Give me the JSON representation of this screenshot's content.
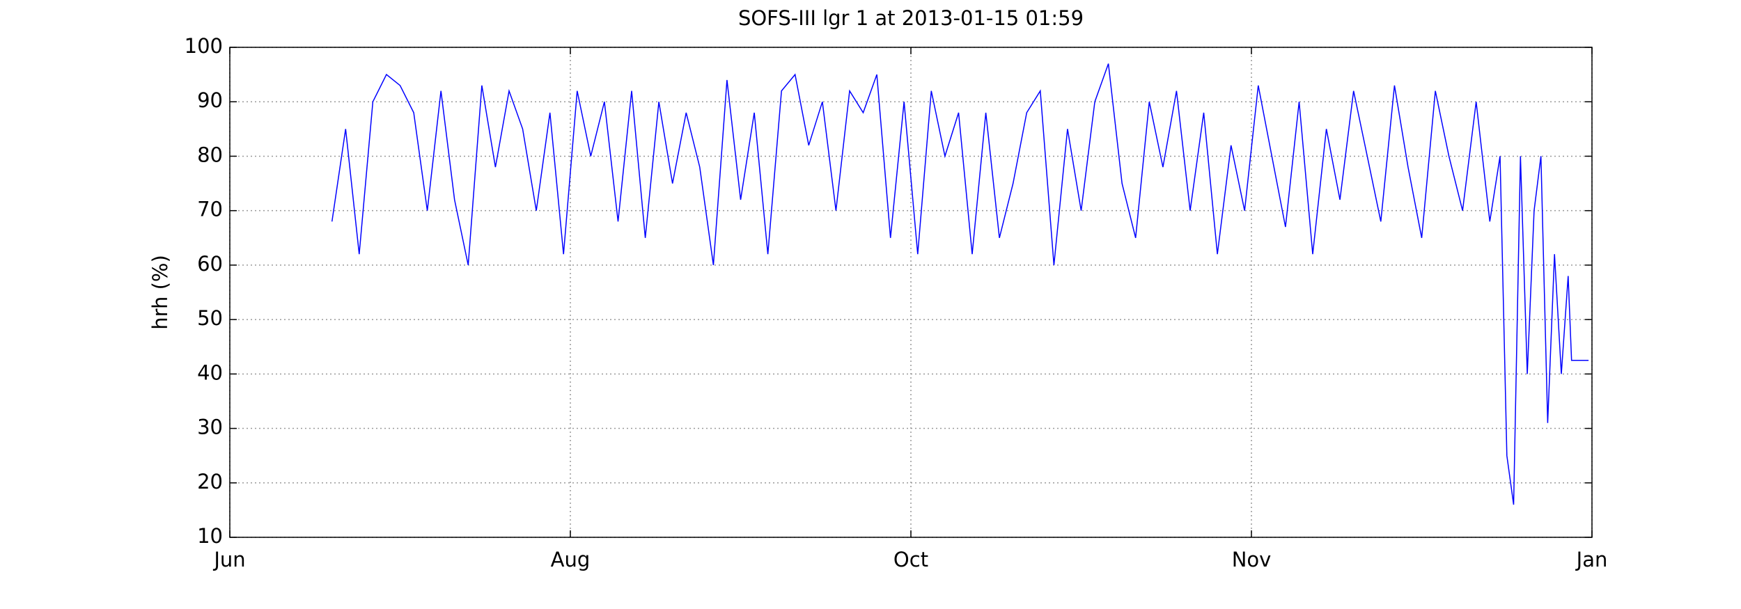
{
  "chart_data": {
    "type": "line",
    "title": "SOFS-III lgr 1 at 2013-01-15 01:59",
    "y_label": "hrh (%)",
    "xlim": [
      0,
      4
    ],
    "xticks": [
      {
        "value": 0,
        "label": "Jun"
      },
      {
        "value": 1,
        "label": "Aug"
      },
      {
        "value": 2,
        "label": "Oct"
      },
      {
        "value": 3,
        "label": "Nov"
      },
      {
        "value": 4,
        "label": "Jan"
      }
    ],
    "ylim": [
      10,
      100
    ],
    "yticks": [
      10,
      20,
      30,
      40,
      50,
      60,
      70,
      80,
      90,
      100
    ],
    "grid": true,
    "series": [
      {
        "name": "hrh",
        "color": "#0000ff",
        "x": [
          0.3,
          0.34,
          0.38,
          0.42,
          0.46,
          0.5,
          0.54,
          0.58,
          0.62,
          0.66,
          0.7,
          0.74,
          0.78,
          0.82,
          0.86,
          0.9,
          0.94,
          0.98,
          1.02,
          1.06,
          1.1,
          1.14,
          1.18,
          1.22,
          1.26,
          1.3,
          1.34,
          1.38,
          1.42,
          1.46,
          1.5,
          1.54,
          1.58,
          1.62,
          1.66,
          1.7,
          1.74,
          1.78,
          1.82,
          1.86,
          1.9,
          1.94,
          1.98,
          2.02,
          2.06,
          2.1,
          2.14,
          2.18,
          2.22,
          2.26,
          2.3,
          2.34,
          2.38,
          2.42,
          2.46,
          2.5,
          2.54,
          2.58,
          2.62,
          2.66,
          2.7,
          2.74,
          2.78,
          2.82,
          2.86,
          2.9,
          2.94,
          2.98,
          3.02,
          3.06,
          3.1,
          3.14,
          3.18,
          3.22,
          3.26,
          3.3,
          3.34,
          3.38,
          3.42,
          3.46,
          3.5,
          3.54,
          3.58,
          3.62,
          3.66,
          3.7,
          3.73,
          3.75,
          3.77,
          3.79,
          3.81,
          3.83,
          3.85,
          3.87,
          3.89,
          3.91,
          3.93,
          3.94,
          3.99
        ],
        "values": [
          68,
          85,
          62,
          90,
          95,
          93,
          88,
          70,
          92,
          72,
          60,
          93,
          78,
          92,
          85,
          70,
          88,
          62,
          92,
          80,
          90,
          68,
          92,
          65,
          90,
          75,
          88,
          78,
          60,
          94,
          72,
          88,
          62,
          92,
          95,
          82,
          90,
          70,
          92,
          88,
          95,
          65,
          90,
          62,
          92,
          80,
          88,
          62,
          88,
          65,
          75,
          88,
          92,
          60,
          85,
          70,
          90,
          97,
          75,
          65,
          90,
          78,
          92,
          70,
          88,
          62,
          82,
          70,
          93,
          80,
          67,
          90,
          62,
          85,
          72,
          92,
          80,
          68,
          93,
          78,
          65,
          92,
          80,
          70,
          90,
          68,
          80,
          25,
          16,
          80,
          40,
          70,
          80,
          31,
          62,
          40,
          58,
          42.5,
          42.5
        ]
      }
    ]
  }
}
